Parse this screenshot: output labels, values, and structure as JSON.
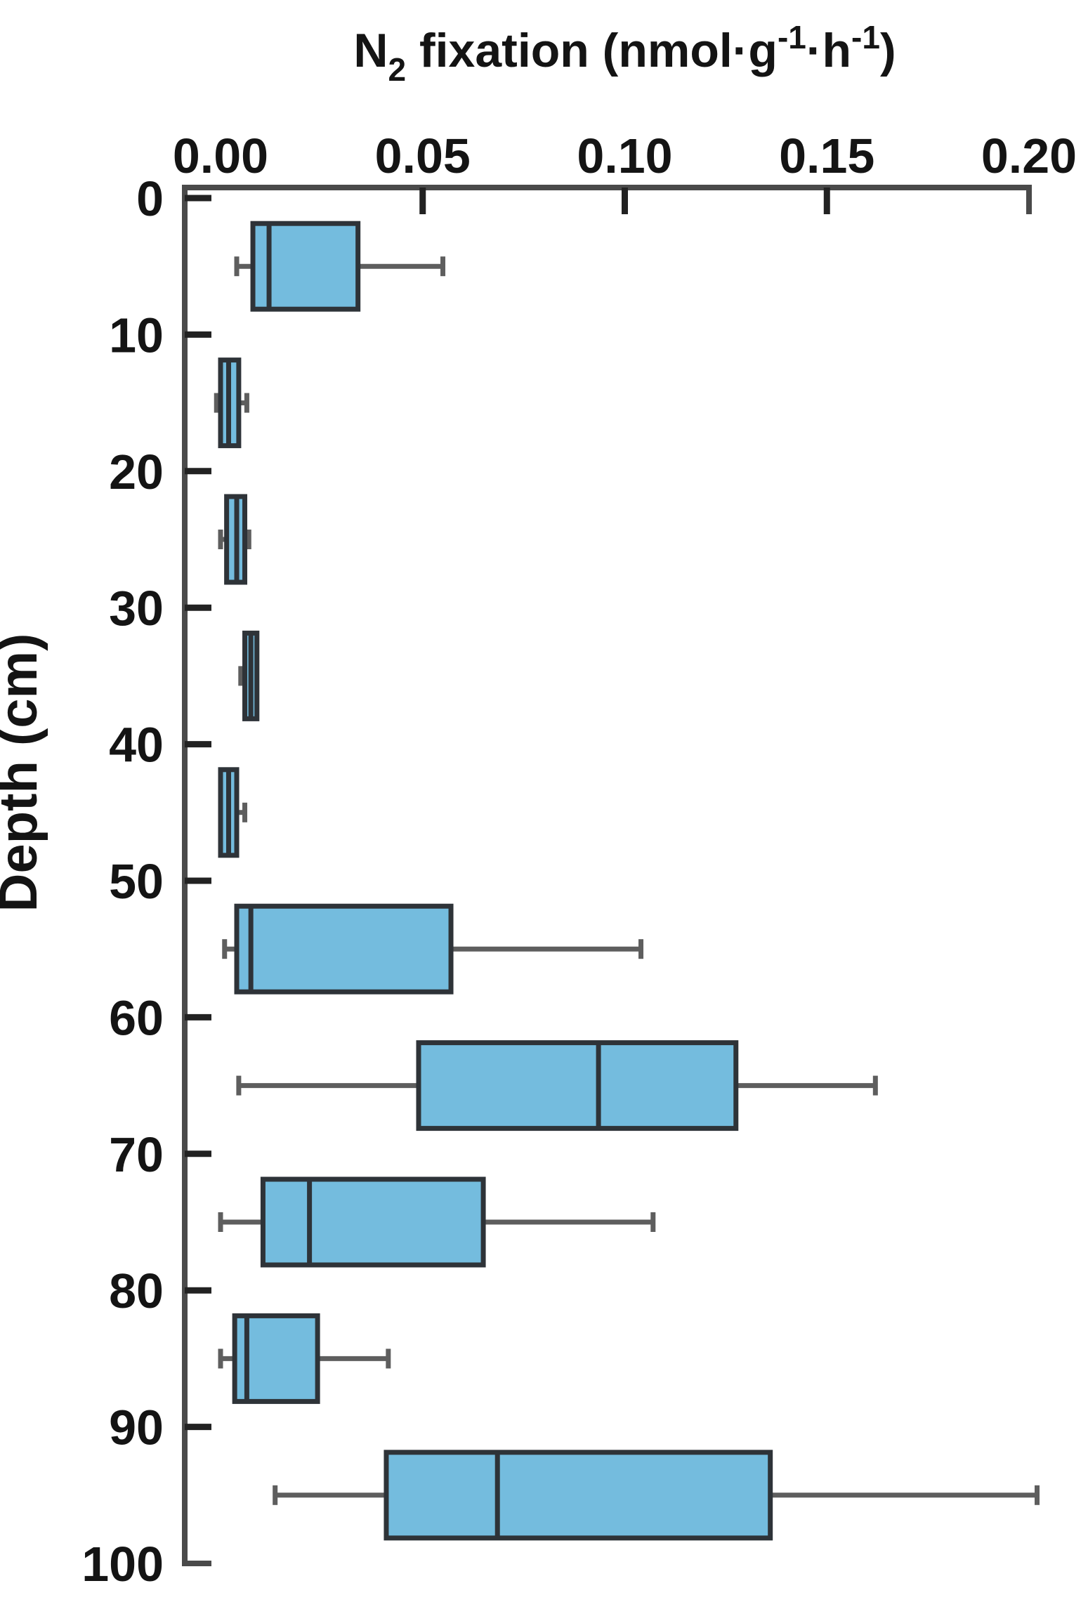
{
  "chart_data": {
    "type": "boxplot",
    "orientation": "horizontal",
    "title_plain": "N2 fixation (nmol·g-1·h-1)",
    "title_segments": [
      {
        "text": "N",
        "style": "normal"
      },
      {
        "text": "2",
        "style": "sub"
      },
      {
        "text": " fixation (nmol·g",
        "style": "normal"
      },
      {
        "text": "-1",
        "style": "sup"
      },
      {
        "text": "·h",
        "style": "normal"
      },
      {
        "text": "-1",
        "style": "sup"
      },
      {
        "text": ")",
        "style": "normal"
      }
    ],
    "ylabel": "Depth (cm)",
    "x_tick_labels": [
      "0.00",
      "0.05",
      "0.10",
      "0.15",
      "0.20"
    ],
    "x_ticks": [
      0.0,
      0.05,
      0.1,
      0.15,
      0.2
    ],
    "y_ticks": [
      0,
      10,
      20,
      30,
      40,
      50,
      60,
      70,
      80,
      90,
      100
    ],
    "xlim": [
      0,
      0.2
    ],
    "ylim": [
      0,
      100
    ],
    "y_axis_inverted": true,
    "grid": false,
    "legend": false,
    "boxes": [
      {
        "depth": 5,
        "whisker_low": 0.004,
        "q1": 0.008,
        "median": 0.012,
        "q3": 0.034,
        "whisker_high": 0.055
      },
      {
        "depth": 15,
        "whisker_low": -0.001,
        "q1": 0.0,
        "median": 0.002,
        "q3": 0.0045,
        "whisker_high": 0.0065
      },
      {
        "depth": 25,
        "whisker_low": 0.0,
        "q1": 0.0015,
        "median": 0.004,
        "q3": 0.006,
        "whisker_high": 0.007
      },
      {
        "depth": 35,
        "whisker_low": 0.005,
        "q1": 0.006,
        "median": 0.0075,
        "q3": 0.009,
        "whisker_high": 0.009
      },
      {
        "depth": 45,
        "whisker_low": 0.0,
        "q1": 0.0,
        "median": 0.002,
        "q3": 0.004,
        "whisker_high": 0.006
      },
      {
        "depth": 55,
        "whisker_low": 0.001,
        "q1": 0.004,
        "median": 0.0075,
        "q3": 0.057,
        "whisker_high": 0.104
      },
      {
        "depth": 65,
        "whisker_low": 0.0045,
        "q1": 0.049,
        "median": 0.0935,
        "q3": 0.1275,
        "whisker_high": 0.162
      },
      {
        "depth": 75,
        "whisker_low": 0.0,
        "q1": 0.0105,
        "median": 0.022,
        "q3": 0.065,
        "whisker_high": 0.107
      },
      {
        "depth": 85,
        "whisker_low": 0.0,
        "q1": 0.0035,
        "median": 0.0065,
        "q3": 0.024,
        "whisker_high": 0.0415
      },
      {
        "depth": 95,
        "whisker_low": 0.0135,
        "q1": 0.041,
        "median": 0.0685,
        "q3": 0.136,
        "whisker_high": 0.202
      }
    ],
    "colors": {
      "box_fill": "#74bcde",
      "box_stroke": "#2e3338",
      "whisker": "#5e5e5e",
      "axis": "#4a4a4a",
      "tick": "#222222",
      "text": "#141414"
    }
  }
}
